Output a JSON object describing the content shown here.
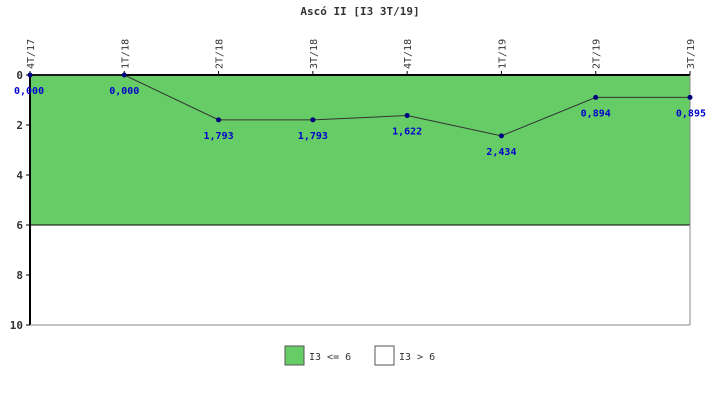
{
  "chart_data": {
    "type": "line",
    "title": "Ascó II [I3 3T/19]",
    "xlabel": "",
    "ylabel": "",
    "categories": [
      "4T/17",
      "1T/18",
      "2T/18",
      "3T/18",
      "4T/18",
      "1T/19",
      "2T/19",
      "3T/19"
    ],
    "series": [
      {
        "values": [
          0.0,
          0.0,
          1.793,
          1.793,
          1.622,
          2.434,
          0.894,
          0.895
        ],
        "labels": [
          "0,000",
          "0,000",
          "1,793",
          "1,793",
          "1,622",
          "2,434",
          "0,894",
          "0,895"
        ],
        "color": "#000080"
      }
    ],
    "ylim": [
      0,
      10
    ],
    "y_inverted": true,
    "yticks": [
      0,
      2,
      4,
      6,
      8,
      10
    ],
    "bands": [
      {
        "name": "I3 <= 6",
        "from": 0,
        "to": 6,
        "color": "#66cc66"
      },
      {
        "name": "I3 > 6",
        "from": 6,
        "to": 10,
        "color": "#ffffff"
      }
    ],
    "legend": "bottom-center",
    "grid": false
  }
}
